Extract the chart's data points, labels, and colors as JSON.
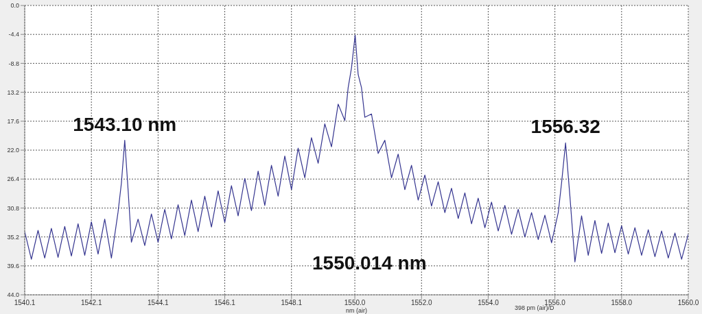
{
  "chart_data": {
    "type": "line",
    "xlabel": "nm (air)",
    "x": [
      1540.1,
      1540.3,
      1540.5,
      1540.7,
      1540.9,
      1541.1,
      1541.3,
      1541.5,
      1541.7,
      1541.9,
      1542.1,
      1542.3,
      1542.5,
      1542.7,
      1542.9,
      1543.0,
      1543.1,
      1543.2,
      1543.3,
      1543.5,
      1543.7,
      1543.9,
      1544.1,
      1544.3,
      1544.5,
      1544.7,
      1544.9,
      1545.1,
      1545.3,
      1545.5,
      1545.7,
      1545.9,
      1546.1,
      1546.3,
      1546.5,
      1546.7,
      1546.9,
      1547.1,
      1547.3,
      1547.5,
      1547.7,
      1547.9,
      1548.1,
      1548.3,
      1548.5,
      1548.7,
      1548.9,
      1549.1,
      1549.3,
      1549.5,
      1549.7,
      1549.8,
      1549.9,
      1550.01,
      1550.1,
      1550.2,
      1550.3,
      1550.5,
      1550.7,
      1550.9,
      1551.1,
      1551.3,
      1551.5,
      1551.7,
      1551.9,
      1552.1,
      1552.3,
      1552.5,
      1552.7,
      1552.9,
      1553.1,
      1553.3,
      1553.5,
      1553.7,
      1553.9,
      1554.1,
      1554.3,
      1554.5,
      1554.7,
      1554.9,
      1555.1,
      1555.3,
      1555.5,
      1555.7,
      1555.9,
      1556.1,
      1556.2,
      1556.32,
      1556.45,
      1556.6,
      1556.8,
      1557.0,
      1557.2,
      1557.4,
      1557.6,
      1557.8,
      1558.0,
      1558.2,
      1558.4,
      1558.6,
      1558.8,
      1559.0,
      1559.2,
      1559.4,
      1559.6,
      1559.8,
      1560.0
    ],
    "series": [
      {
        "color": "#34348f",
        "values": [
          -34.4,
          -38.6,
          -34.2,
          -38.4,
          -33.9,
          -38.3,
          -33.6,
          -38.1,
          -33.2,
          -38.0,
          -32.9,
          -37.8,
          -32.5,
          -38.4,
          -31.4,
          -27,
          -20.5,
          -28,
          -36.0,
          -32.5,
          -36.5,
          -31.7,
          -36.0,
          -31.0,
          -35.5,
          -30.3,
          -35.0,
          -29.6,
          -34.4,
          -29.0,
          -33.7,
          -28.2,
          -33.0,
          -27.4,
          -32.0,
          -26.3,
          -31.2,
          -25.2,
          -30.4,
          -24.3,
          -29.0,
          -22.9,
          -28.0,
          -21.7,
          -26.2,
          -20.1,
          -24.0,
          -18.0,
          -21.5,
          -15.0,
          -17.5,
          -12.5,
          -9.5,
          -4.5,
          -10.5,
          -12.5,
          -17.0,
          -16.5,
          -22.5,
          -20.5,
          -26.2,
          -22.6,
          -28.0,
          -24.3,
          -29.6,
          -25.8,
          -30.5,
          -26.8,
          -31.5,
          -27.8,
          -32.4,
          -28.5,
          -33.2,
          -29.3,
          -33.8,
          -29.9,
          -34.3,
          -30.4,
          -34.8,
          -31.0,
          -35.2,
          -31.5,
          -35.6,
          -31.9,
          -36.1,
          -31.5,
          -27.0,
          -20.9,
          -29.0,
          -39.0,
          -32.0,
          -38.0,
          -32.7,
          -37.7,
          -33.1,
          -37.6,
          -33.5,
          -37.8,
          -33.8,
          -38.0,
          -34.1,
          -38.2,
          -34.3,
          -38.4,
          -34.6,
          -38.6,
          -34.8
        ]
      }
    ],
    "xlim": [
      1540.1,
      1560.0
    ],
    "xticks": [
      1540.1,
      1542.1,
      1544.1,
      1546.1,
      1548.1,
      {
        "value": 1550.0,
        "label": "1550.0"
      },
      {
        "value": 1552.0,
        "label": "1552.0"
      },
      {
        "value": 1554.0,
        "label": "1554.0"
      },
      {
        "value": 1556.0,
        "label": "1556.0"
      },
      {
        "value": 1558.0,
        "label": "1558.0"
      },
      {
        "value": 1560.0,
        "label": "1560.0"
      }
    ],
    "ylim": [
      -44,
      0
    ],
    "yticks": [
      {
        "value": 0,
        "label": "0.0"
      },
      -4.4,
      -8.8,
      {
        "value": -13.2,
        "label": "13.2"
      },
      {
        "value": -17.6,
        "label": "17.6"
      },
      {
        "value": -22.0,
        "label": "22.0"
      },
      {
        "value": -26.4,
        "label": "26.4"
      },
      {
        "value": -30.8,
        "label": "30.8"
      },
      {
        "value": -35.2,
        "label": "35.2"
      },
      {
        "value": -39.6,
        "label": "39.6"
      },
      {
        "value": -44.0,
        "label": "44.0"
      }
    ],
    "grid": true,
    "annotations": [
      {
        "text": "1543.10 nm",
        "x": 1543.1,
        "y": -20.5
      },
      {
        "text": "1556.32",
        "x": 1556.32,
        "y": -20.9
      },
      "1550.014 nm",
      "398 pm (air)/D"
    ]
  }
}
